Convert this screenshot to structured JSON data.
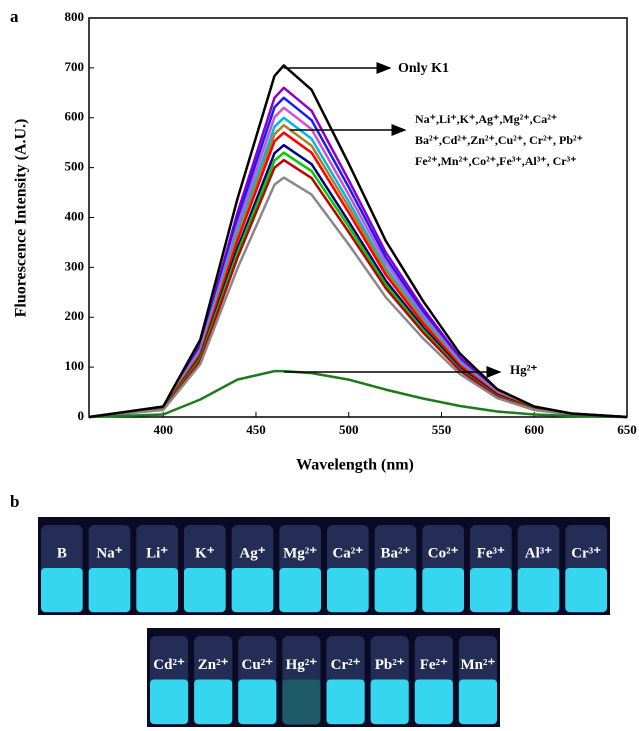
{
  "chart_data": {
    "type": "line",
    "panel_label": "a",
    "xlabel": "Wavelength (nm)",
    "ylabel": "Fluorescence Intensity (A.U.)",
    "xlim": [
      360,
      650
    ],
    "ylim": [
      0,
      800
    ],
    "xticks": [
      400,
      450,
      500,
      550,
      600,
      650
    ],
    "yticks": [
      0,
      100,
      200,
      300,
      400,
      500,
      600,
      700,
      800
    ],
    "x": [
      360,
      400,
      420,
      440,
      460,
      465,
      480,
      500,
      520,
      540,
      560,
      580,
      600,
      620,
      650
    ],
    "series": [
      {
        "name": "Only K1",
        "color": "#000000",
        "values": [
          0,
          21,
          155,
          437,
          684,
          705,
          656,
          508,
          353,
          233,
          127,
          56,
          21,
          7,
          0
        ]
      },
      {
        "color": "#8b00c8",
        "values": [
          0,
          20,
          145,
          409,
          640,
          660,
          614,
          475,
          330,
          218,
          119,
          53,
          20,
          7,
          0
        ]
      },
      {
        "color": "#1a1aff",
        "values": [
          0,
          19,
          141,
          397,
          621,
          640,
          595,
          461,
          320,
          211,
          115,
          51,
          19,
          6,
          0
        ]
      },
      {
        "color": "#d050d0",
        "values": [
          0,
          19,
          136,
          384,
          601,
          620,
          577,
          446,
          310,
          205,
          112,
          50,
          19,
          6,
          0
        ]
      },
      {
        "color": "#00b8e8",
        "values": [
          0,
          18,
          132,
          372,
          582,
          600,
          558,
          432,
          300,
          198,
          108,
          48,
          18,
          6,
          0
        ]
      },
      {
        "color": "#b08020",
        "values": [
          0,
          18,
          129,
          363,
          567,
          585,
          544,
          421,
          293,
          193,
          105,
          47,
          18,
          6,
          0
        ]
      },
      {
        "color": "#ff0000",
        "values": [
          0,
          17,
          125,
          353,
          553,
          570,
          530,
          410,
          285,
          188,
          103,
          46,
          17,
          6,
          0
        ]
      },
      {
        "color": "#000080",
        "values": [
          0,
          16,
          120,
          338,
          529,
          545,
          507,
          392,
          273,
          180,
          98,
          44,
          16,
          5,
          0
        ]
      },
      {
        "color": "#00cc00",
        "values": [
          0,
          16,
          117,
          329,
          514,
          530,
          493,
          382,
          265,
          175,
          95,
          42,
          16,
          5,
          0
        ]
      },
      {
        "color": "#c00000",
        "values": [
          0,
          15,
          113,
          319,
          500,
          515,
          479,
          371,
          258,
          170,
          93,
          41,
          15,
          5,
          0
        ]
      },
      {
        "color": "#888888",
        "values": [
          0,
          14,
          106,
          298,
          466,
          480,
          446,
          346,
          240,
          158,
          86,
          38,
          14,
          5,
          0
        ]
      },
      {
        "name": "Hg²⁺",
        "color": "#1e7a1e",
        "values": [
          0,
          5,
          35,
          75,
          92,
          92,
          88,
          75,
          55,
          37,
          22,
          11,
          5,
          2,
          0
        ]
      }
    ],
    "annotations": [
      "Na⁺,Li⁺,K⁺,Ag⁺,Mg²⁺,Ca²⁺",
      "Ba²⁺,Cd²⁺,Zn²⁺,Cu²⁺, Cr²⁺, Pb²⁺",
      "Fe²⁺,Mn²⁺,Co²⁺,Fe³⁺,Al³⁺, Cr³⁺"
    ]
  },
  "panel_b": {
    "label": "b",
    "rows": [
      [
        "B",
        "Na⁺",
        "Li⁺",
        "K⁺",
        "Ag⁺",
        "Mg²⁺",
        "Ca²⁺",
        "Ba²⁺",
        "Co²⁺",
        "Fe³⁺",
        "Al³⁺",
        "Cr³⁺"
      ],
      [
        "Cd²⁺",
        "Zn²⁺",
        "Cu²⁺",
        "Hg²⁺",
        "Cr²⁺",
        "Pb²⁺",
        "Fe²⁺",
        "Mn²⁺"
      ]
    ]
  }
}
